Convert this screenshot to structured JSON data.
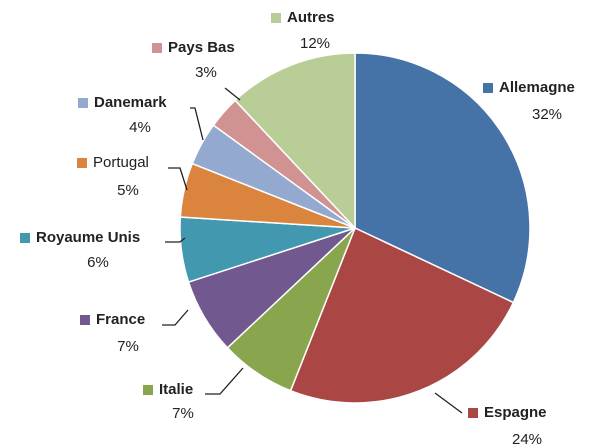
{
  "chart_data": {
    "type": "pie",
    "categories": [
      "Allemagne",
      "Espagne",
      "Italie",
      "France",
      "Royaume Unis",
      "Portugal",
      "Danemark",
      "Pays Bas",
      "Autres"
    ],
    "values": [
      32,
      24,
      7,
      7,
      6,
      5,
      4,
      3,
      12
    ],
    "value_labels": [
      "32%",
      "24%",
      "7%",
      "7%",
      "6%",
      "5%",
      "4%",
      "3%",
      "12%"
    ],
    "colors": [
      "#4572a7",
      "#aa4643",
      "#89a54e",
      "#71588f",
      "#4198af",
      "#db843d",
      "#93a9cf",
      "#d19392",
      "#b9cd96"
    ]
  }
}
